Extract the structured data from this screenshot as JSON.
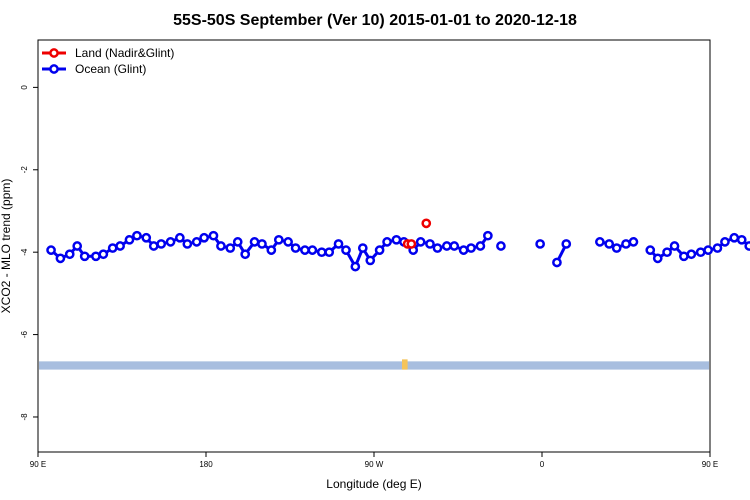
{
  "chart_data": {
    "type": "scatter",
    "title": "55S-50S September (Ver 10)   2015-01-01 to 2020-12-18",
    "xlabel": "Longitude (deg E)",
    "ylabel": "XCO2 - MLO trend (ppm)",
    "x_unit": "degrees east, unwrapped (90E .. 180 .. 90W .. 0 .. 90E .. 180 = 90..450)",
    "xlim": [
      90,
      450
    ],
    "ylim": [
      -8.85,
      1.15
    ],
    "x_ticks": [
      {
        "value": 90,
        "label": "90 E"
      },
      {
        "value": 180,
        "label": "180"
      },
      {
        "value": 270,
        "label": "90 W"
      },
      {
        "value": 360,
        "label": "0"
      },
      {
        "value": 450,
        "label": "90 E"
      },
      {
        "value": 540,
        "label": "180"
      }
    ],
    "y_ticks": [
      0,
      -2,
      -4,
      -6,
      -8
    ],
    "grid": false,
    "legend_position": "top-left",
    "band": {
      "y_from": -6.65,
      "y_to": -6.85,
      "color": "#a8bedf",
      "land_color": "#f5c45a",
      "land_x": [
        285,
        288
      ]
    },
    "series": [
      {
        "name": "Land (Nadir&Glint)",
        "color": "#ee0000",
        "points": [
          [
            288,
            -3.8
          ],
          [
            290,
            -3.8
          ],
          [
            298,
            -3.3
          ]
        ]
      },
      {
        "name": "Ocean (Glint)",
        "color": "#0000ee",
        "segments": [
          [
            [
              97,
              -3.95
            ],
            [
              102,
              -4.15
            ],
            [
              107,
              -4.05
            ],
            [
              111,
              -3.85
            ],
            [
              115,
              -4.1
            ],
            [
              121,
              -4.1
            ],
            [
              125,
              -4.05
            ],
            [
              130,
              -3.9
            ],
            [
              134,
              -3.85
            ],
            [
              139,
              -3.7
            ],
            [
              143,
              -3.6
            ],
            [
              148,
              -3.65
            ],
            [
              152,
              -3.85
            ],
            [
              156,
              -3.8
            ],
            [
              161,
              -3.75
            ],
            [
              166,
              -3.65
            ],
            [
              170,
              -3.8
            ],
            [
              175,
              -3.75
            ],
            [
              179,
              -3.65
            ],
            [
              184,
              -3.6
            ],
            [
              188,
              -3.85
            ],
            [
              193,
              -3.9
            ],
            [
              197,
              -3.75
            ],
            [
              201,
              -4.05
            ],
            [
              206,
              -3.75
            ],
            [
              210,
              -3.8
            ],
            [
              215,
              -3.95
            ],
            [
              219,
              -3.7
            ],
            [
              224,
              -3.75
            ],
            [
              228,
              -3.9
            ],
            [
              233,
              -3.95
            ],
            [
              237,
              -3.95
            ],
            [
              242,
              -4
            ],
            [
              246,
              -4
            ],
            [
              251,
              -3.8
            ],
            [
              255,
              -3.95
            ],
            [
              260,
              -4.35
            ],
            [
              264,
              -3.9
            ],
            [
              268,
              -4.2
            ],
            [
              273,
              -3.95
            ],
            [
              277,
              -3.75
            ],
            [
              282,
              -3.7
            ],
            [
              286,
              -3.75
            ],
            [
              291,
              -3.95
            ],
            [
              295,
              -3.75
            ],
            [
              300,
              -3.8
            ],
            [
              304,
              -3.9
            ],
            [
              309,
              -3.85
            ],
            [
              313,
              -3.85
            ],
            [
              318,
              -3.95
            ],
            [
              322,
              -3.9
            ],
            [
              327,
              -3.85
            ],
            [
              331,
              -3.6
            ]
          ],
          [
            [
              338,
              -3.85
            ]
          ],
          [
            [
              359,
              -3.8
            ]
          ],
          [
            [
              368,
              -4.25
            ],
            [
              373,
              -3.8
            ]
          ],
          [
            [
              391,
              -3.75
            ],
            [
              396,
              -3.8
            ],
            [
              400,
              -3.9
            ],
            [
              405,
              -3.8
            ],
            [
              409,
              -3.75
            ]
          ],
          [
            [
              418,
              -3.95
            ],
            [
              422,
              -4.15
            ],
            [
              427,
              -4
            ],
            [
              431,
              -3.85
            ],
            [
              436,
              -4.1
            ],
            [
              440,
              -4.05
            ],
            [
              445,
              -4
            ],
            [
              449,
              -3.95
            ],
            [
              454,
              -3.9
            ],
            [
              458,
              -3.75
            ],
            [
              463,
              -3.65
            ],
            [
              467,
              -3.7
            ],
            [
              471,
              -3.85
            ],
            [
              476,
              -3.8
            ],
            [
              480,
              -3.75
            ],
            [
              485,
              -3.7
            ],
            [
              489,
              -3.8
            ]
          ]
        ]
      }
    ]
  }
}
